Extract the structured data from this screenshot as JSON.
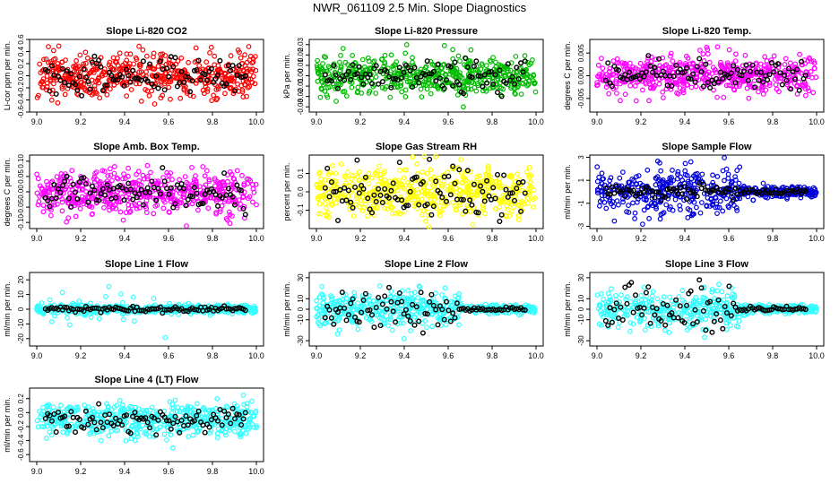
{
  "page_title": "NWR_061109  2.5 Min. Slope Diagnostics",
  "chart_data": [
    {
      "type": "scatter",
      "title": "Slope Li-820 CO2",
      "ylabel": "Li-cor ppm per min.",
      "xlim": [
        9.0,
        10.0
      ],
      "xticks": [
        "9.0",
        "9.2",
        "9.4",
        "9.6",
        "9.8",
        "10.0"
      ],
      "ylim": [
        -0.6,
        0.6
      ],
      "yticks": [
        -0.6,
        -0.4,
        -0.2,
        0.0,
        0.2,
        0.4,
        0.6
      ],
      "ytick_labels": [
        "-0.6",
        "-0.4",
        "-0.2",
        "0.0",
        "0.2",
        "0.4",
        "0.6"
      ],
      "color": "#ff0000",
      "spread": 0.18,
      "outlier": 0.45,
      "n_points": 520,
      "black_spread": 0.15,
      "n_black": 95,
      "highlight_color": "#000000"
    },
    {
      "type": "scatter",
      "title": "Slope Li-820 Pressure",
      "ylabel": "kPa per min.",
      "xlim": [
        9.0,
        10.0
      ],
      "xticks": [
        "9.0",
        "9.2",
        "9.4",
        "9.6",
        "9.8",
        "10.0"
      ],
      "ylim": [
        -0.035,
        0.035
      ],
      "yticks": [
        -0.03,
        -0.02,
        -0.01,
        0.0,
        0.01,
        0.02,
        0.03
      ],
      "ytick_labels": [
        "-0.03",
        "-0.02",
        "-0.01",
        "0.00",
        "0.01",
        "0.02",
        "0.03"
      ],
      "color": "#00bb00",
      "spread": 0.009,
      "outlier": 0.03,
      "n_points": 520,
      "black_spread": 0.008,
      "n_black": 95,
      "highlight_color": "#000000"
    },
    {
      "type": "scatter",
      "title": "Slope Li-820 Temp.",
      "ylabel": "degrees C per min.",
      "xlim": [
        9.0,
        10.0
      ],
      "xticks": [
        "9.0",
        "9.2",
        "9.4",
        "9.6",
        "9.8",
        "10.0"
      ],
      "ylim": [
        -0.008,
        0.008
      ],
      "yticks": [
        -0.005,
        0.0,
        0.005
      ],
      "ytick_labels": [
        "-0.005",
        "0.000",
        "0.005"
      ],
      "color": "#ff00ff",
      "spread": 0.0022,
      "outlier": 0.0065,
      "n_points": 520,
      "black_spread": 0.0015,
      "n_black": 95,
      "highlight_color": "#000000"
    },
    {
      "type": "scatter",
      "title": "Slope Amb. Box Temp.",
      "ylabel": "degrees C per min.",
      "xlim": [
        9.0,
        10.0
      ],
      "xticks": [
        "9.0",
        "9.2",
        "9.4",
        "9.6",
        "9.8",
        "10.0"
      ],
      "ylim": [
        -0.12,
        0.12
      ],
      "yticks": [
        -0.1,
        -0.05,
        0.0,
        0.05,
        0.1
      ],
      "ytick_labels": [
        "-0.10",
        "-0.05",
        "0.00",
        "0.05",
        "0.10"
      ],
      "color": "#ff00ff",
      "spread": 0.035,
      "outlier": 0.1,
      "n_points": 520,
      "black_spread": 0.03,
      "n_black": 95,
      "highlight_color": "#000000"
    },
    {
      "type": "scatter",
      "title": "Slope Gas Stream RH",
      "ylabel": "percent per min.",
      "xlim": [
        9.0,
        10.0
      ],
      "xticks": [
        "9.0",
        "9.2",
        "9.4",
        "9.6",
        "9.8",
        "10.0"
      ],
      "ylim": [
        -0.2,
        0.2
      ],
      "yticks": [
        -0.1,
        0.0,
        0.1
      ],
      "ytick_labels": [
        "-0.1",
        "0.0",
        "0.1"
      ],
      "color": "#ffff00",
      "spread": 0.07,
      "outlier": 0.15,
      "n_points": 520,
      "black_spread": 0.07,
      "n_black": 95,
      "highlight_color": "#000000"
    },
    {
      "type": "scatter",
      "title": "Slope Sample Flow",
      "ylabel": "ml/min per min.",
      "xlim": [
        9.0,
        10.0
      ],
      "xticks": [
        "9.0",
        "9.2",
        "9.4",
        "9.6",
        "9.8",
        "10.0"
      ],
      "ylim": [
        -3.2,
        3.2
      ],
      "yticks": [
        -3,
        -1,
        1,
        3
      ],
      "ytick_labels": [
        "-3",
        "-1",
        "1",
        "3"
      ],
      "color": "#0000dd",
      "spread": 1.0,
      "outlier": 2.7,
      "n_points": 520,
      "black_spread": 0.3,
      "n_black": 95,
      "highlight_color": "#000000",
      "settle_x": 9.65,
      "settle_spread": 0.25
    },
    {
      "type": "scatter",
      "title": "Slope Line 1 Flow",
      "ylabel": "ml/min per min.",
      "xlim": [
        9.0,
        10.0
      ],
      "xticks": [
        "9.0",
        "9.2",
        "9.4",
        "9.6",
        "9.8",
        "10.0"
      ],
      "ylim": [
        -25,
        25
      ],
      "yticks": [
        -20,
        -10,
        0,
        10,
        20
      ],
      "ytick_labels": [
        "-20",
        "-10",
        "0",
        "10",
        "20"
      ],
      "color": "#33ffff",
      "spread": 1.5,
      "outlier": 20,
      "n_points": 520,
      "black_spread": 1.0,
      "n_black": 95,
      "highlight_color": "#000000",
      "n_outliers": 40
    },
    {
      "type": "scatter",
      "title": "Slope Line 2 Flow",
      "ylabel": "ml/min per min.",
      "xlim": [
        9.0,
        10.0
      ],
      "xticks": [
        "9.0",
        "9.2",
        "9.4",
        "9.6",
        "9.8",
        "10.0"
      ],
      "ylim": [
        -35,
        35
      ],
      "yticks": [
        -30,
        -10,
        0,
        10,
        30
      ],
      "ytick_labels": [
        "-30",
        "-10",
        "0",
        "10",
        "30"
      ],
      "color": "#33ffff",
      "spread": 8,
      "outlier": 30,
      "n_points": 520,
      "black_spread": 10,
      "n_black": 95,
      "highlight_color": "#000000",
      "settle_x": 9.65,
      "settle_spread": 2
    },
    {
      "type": "scatter",
      "title": "Slope Line 3 Flow",
      "ylabel": "ml/min per min.",
      "xlim": [
        9.0,
        10.0
      ],
      "xticks": [
        "9.0",
        "9.2",
        "9.4",
        "9.6",
        "9.8",
        "10.0"
      ],
      "ylim": [
        -35,
        35
      ],
      "yticks": [
        -30,
        -10,
        0,
        10,
        30
      ],
      "ytick_labels": [
        "-30",
        "-10",
        "0",
        "10",
        "30"
      ],
      "color": "#33ffff",
      "spread": 9,
      "outlier": 30,
      "n_points": 520,
      "black_spread": 11,
      "n_black": 95,
      "highlight_color": "#000000",
      "settle_x": 9.65,
      "settle_spread": 2
    },
    {
      "type": "scatter",
      "title": "Slope Line 4 (LT) Flow",
      "ylabel": "ml/min per min.",
      "xlim": [
        9.0,
        10.0
      ],
      "xticks": [
        "9.0",
        "9.2",
        "9.4",
        "9.6",
        "9.8",
        "10.0"
      ],
      "ylim": [
        -0.7,
        0.35
      ],
      "yticks": [
        -0.6,
        -0.4,
        -0.2,
        0.0,
        0.2
      ],
      "ytick_labels": [
        "-0.6",
        "-0.4",
        "-0.2",
        "0.0",
        "0.2"
      ],
      "color": "#33ffff",
      "spread": 0.12,
      "outlier": 0.35,
      "n_points": 520,
      "black_spread": 0.09,
      "n_black": 95,
      "highlight_color": "#000000",
      "center": -0.1
    }
  ]
}
